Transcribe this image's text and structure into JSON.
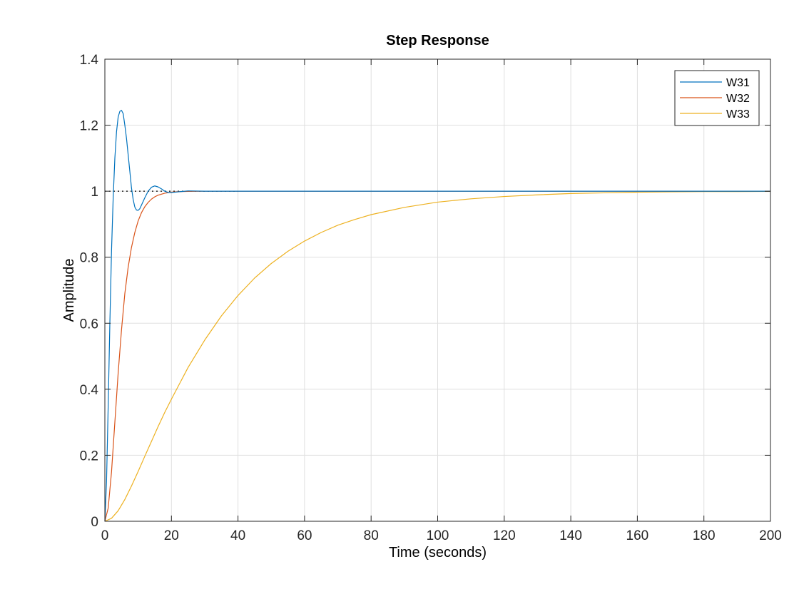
{
  "chart_data": {
    "type": "line",
    "title": "Step Response",
    "xlabel": "Time (seconds)",
    "ylabel": "Amplitude",
    "xlim": [
      0,
      200
    ],
    "ylim": [
      0,
      1.4
    ],
    "xticks": [
      0,
      20,
      40,
      60,
      80,
      100,
      120,
      140,
      160,
      180,
      200
    ],
    "yticks": [
      0,
      0.2,
      0.4,
      0.6,
      0.8,
      1,
      1.2,
      1.4
    ],
    "grid": true,
    "legend_position": "top-right",
    "reference_line": {
      "y": 1,
      "style": "dotted",
      "x_range": [
        0,
        40
      ]
    },
    "series": [
      {
        "name": "W31",
        "color": "#0072BD",
        "points": [
          [
            0,
            0
          ],
          [
            0.5,
            0.12
          ],
          [
            1,
            0.35
          ],
          [
            1.5,
            0.6
          ],
          [
            2,
            0.82
          ],
          [
            2.5,
            0.98
          ],
          [
            3,
            1.1
          ],
          [
            3.5,
            1.18
          ],
          [
            4,
            1.225
          ],
          [
            4.5,
            1.242
          ],
          [
            5,
            1.245
          ],
          [
            5.5,
            1.235
          ],
          [
            6,
            1.2
          ],
          [
            6.5,
            1.16
          ],
          [
            7,
            1.11
          ],
          [
            7.5,
            1.06
          ],
          [
            8,
            1.01
          ],
          [
            8.5,
            0.975
          ],
          [
            9,
            0.952
          ],
          [
            9.5,
            0.943
          ],
          [
            10,
            0.942
          ],
          [
            10.5,
            0.947
          ],
          [
            11,
            0.958
          ],
          [
            12,
            0.98
          ],
          [
            13,
            1.0
          ],
          [
            14,
            1.012
          ],
          [
            15,
            1.016
          ],
          [
            16,
            1.013
          ],
          [
            17,
            1.007
          ],
          [
            18,
            1.0
          ],
          [
            19,
            0.996
          ],
          [
            20,
            0.996
          ],
          [
            22,
            0.998
          ],
          [
            25,
            1.001
          ],
          [
            30,
            1.0
          ],
          [
            40,
            1.0
          ],
          [
            60,
            1.0
          ],
          [
            100,
            1.0
          ],
          [
            150,
            1.0
          ],
          [
            200,
            1.0
          ]
        ]
      },
      {
        "name": "W32",
        "color": "#D95319",
        "points": [
          [
            0,
            0
          ],
          [
            1,
            0.04
          ],
          [
            2,
            0.15
          ],
          [
            3,
            0.3
          ],
          [
            4,
            0.45
          ],
          [
            5,
            0.58
          ],
          [
            6,
            0.69
          ],
          [
            7,
            0.77
          ],
          [
            8,
            0.83
          ],
          [
            9,
            0.875
          ],
          [
            10,
            0.91
          ],
          [
            11,
            0.935
          ],
          [
            12,
            0.953
          ],
          [
            13,
            0.966
          ],
          [
            14,
            0.976
          ],
          [
            15,
            0.983
          ],
          [
            16,
            0.988
          ],
          [
            18,
            0.994
          ],
          [
            20,
            0.997
          ],
          [
            22,
            0.9985
          ],
          [
            25,
            0.9995
          ],
          [
            30,
            1.0
          ],
          [
            40,
            1.0
          ],
          [
            60,
            1.0
          ],
          [
            100,
            1.0
          ],
          [
            150,
            1.0
          ],
          [
            200,
            1.0
          ]
        ]
      },
      {
        "name": "W33",
        "color": "#EDB120",
        "points": [
          [
            0,
            0
          ],
          [
            2,
            0.009
          ],
          [
            4,
            0.032
          ],
          [
            6,
            0.066
          ],
          [
            8,
            0.107
          ],
          [
            10,
            0.151
          ],
          [
            12,
            0.197
          ],
          [
            14,
            0.242
          ],
          [
            16,
            0.287
          ],
          [
            18,
            0.33
          ],
          [
            20,
            0.37
          ],
          [
            25,
            0.466
          ],
          [
            30,
            0.549
          ],
          [
            35,
            0.622
          ],
          [
            40,
            0.684
          ],
          [
            45,
            0.737
          ],
          [
            50,
            0.781
          ],
          [
            55,
            0.818
          ],
          [
            60,
            0.849
          ],
          [
            65,
            0.875
          ],
          [
            70,
            0.897
          ],
          [
            75,
            0.914
          ],
          [
            80,
            0.929
          ],
          [
            90,
            0.951
          ],
          [
            100,
            0.967
          ],
          [
            110,
            0.977
          ],
          [
            120,
            0.984
          ],
          [
            130,
            0.989
          ],
          [
            140,
            0.993
          ],
          [
            150,
            0.995
          ],
          [
            160,
            0.997
          ],
          [
            170,
            0.998
          ],
          [
            180,
            0.999
          ],
          [
            190,
            0.999
          ],
          [
            200,
            0.9995
          ]
        ]
      }
    ]
  }
}
